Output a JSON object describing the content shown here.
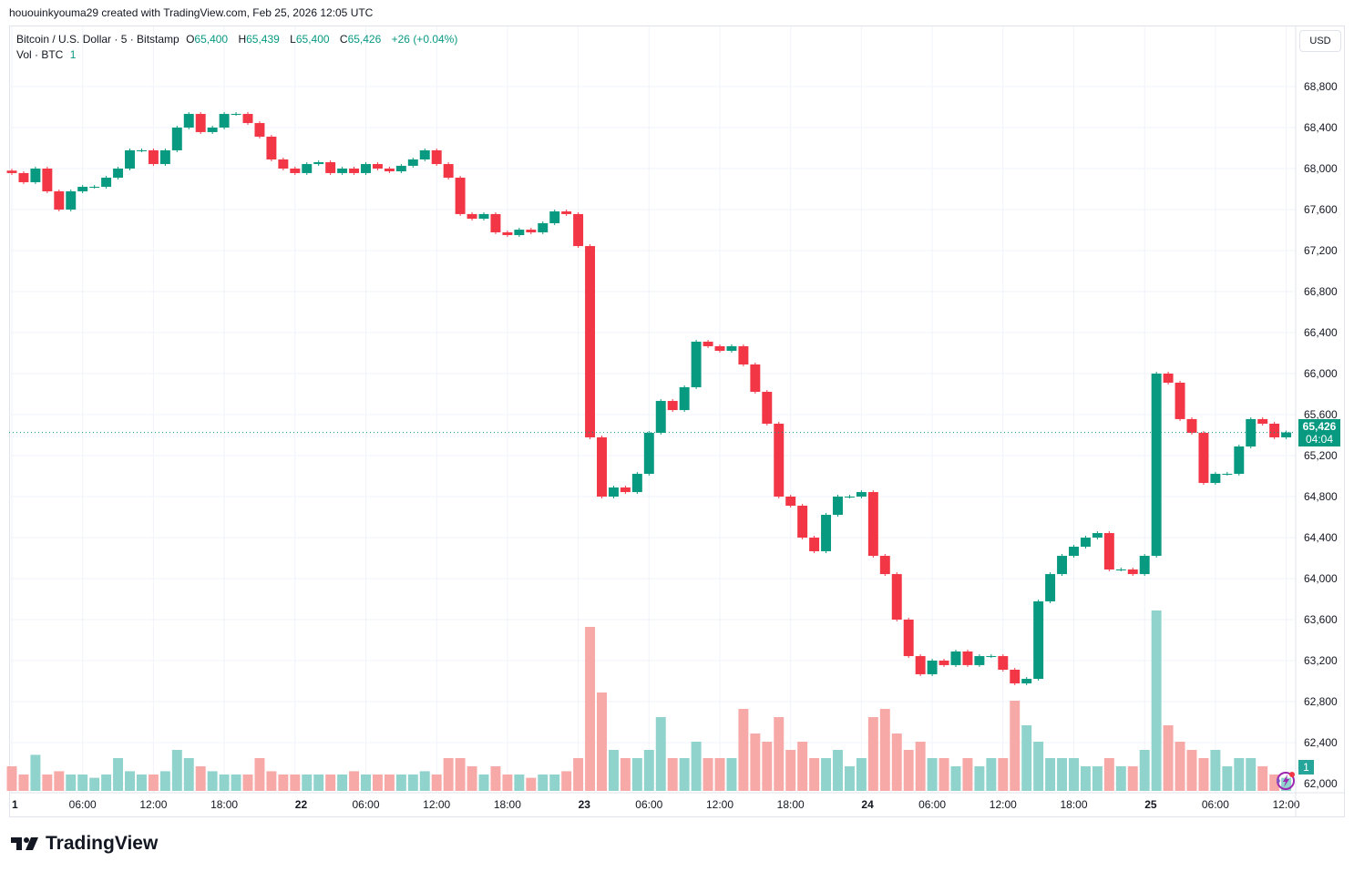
{
  "attribution": "hououinkyouma29 created with TradingView.com, Feb 25, 2026 12:05 UTC",
  "legend": {
    "symbol": "Bitcoin / U.S. Dollar · 5 · Bitstamp",
    "open_label": "O",
    "open": "65,400",
    "high_label": "H",
    "high": "65,439",
    "low_label": "L",
    "low": "65,400",
    "close_label": "C",
    "close": "65,426",
    "change": "+26 (+0.04%)",
    "volume_label": "Vol · BTC",
    "volume_value": "1"
  },
  "currency_button": "USD",
  "last_price": {
    "price": "65,426",
    "countdown": "04:04"
  },
  "volume_axis_label": "1",
  "colors": {
    "up": "#089981",
    "down": "#f23645",
    "up_volume": "#8fd3cc",
    "down_volume": "#f7a9a7",
    "grid": "#f0f3fa"
  },
  "logo_text": "TradingView",
  "icons": {
    "logo": "tradingview-logo-icon",
    "indicator": "lightning-spark-icon"
  },
  "chart_data": {
    "type": "candlestick",
    "title": "Bitcoin / U.S. Dollar · 5 · Bitstamp",
    "ylim": [
      61900,
      69300
    ],
    "grid": true,
    "y_ticks": [
      68800,
      68400,
      68000,
      67600,
      67200,
      66800,
      66400,
      66000,
      65600,
      65200,
      64800,
      64400,
      64000,
      63600,
      63200,
      62800,
      62400,
      62000
    ],
    "y_tick_labels": [
      "68,800",
      "68,400",
      "68,000",
      "67,600",
      "67,200",
      "66,800",
      "66,400",
      "66,000",
      "65,600",
      "65,200",
      "64,800",
      "64,400",
      "64,000",
      "63,600",
      "63,200",
      "62,800",
      "62,400",
      "62,000"
    ],
    "x_tick_labels": [
      {
        "label": "1",
        "hour": 0,
        "day": true
      },
      {
        "label": "06:00",
        "hour": 6
      },
      {
        "label": "12:00",
        "hour": 12
      },
      {
        "label": "18:00",
        "hour": 18
      },
      {
        "label": "22",
        "hour": 24,
        "day": true
      },
      {
        "label": "06:00",
        "hour": 30
      },
      {
        "label": "12:00",
        "hour": 36
      },
      {
        "label": "18:00",
        "hour": 42
      },
      {
        "label": "23",
        "hour": 48,
        "day": true
      },
      {
        "label": "06:00",
        "hour": 54
      },
      {
        "label": "12:00",
        "hour": 60
      },
      {
        "label": "18:00",
        "hour": 66
      },
      {
        "label": "24",
        "hour": 72,
        "day": true
      },
      {
        "label": "06:00",
        "hour": 78
      },
      {
        "label": "12:00",
        "hour": 84
      },
      {
        "label": "18:00",
        "hour": 90
      },
      {
        "label": "25",
        "hour": 96,
        "day": true
      },
      {
        "label": "06:00",
        "hour": 102
      },
      {
        "label": "12:00",
        "hour": 108
      }
    ],
    "hourly_close_approx": [
      67956,
      67867,
      68000,
      67778,
      67600,
      67778,
      67822,
      67822,
      67911,
      68000,
      68178,
      68178,
      68044,
      68178,
      68400,
      68533,
      68356,
      68400,
      68533,
      68533,
      68444,
      68311,
      68089,
      68000,
      67956,
      68044,
      68062,
      67956,
      68000,
      67956,
      68044,
      68000,
      67973,
      68027,
      68089,
      68178,
      68044,
      67911,
      67556,
      67511,
      67556,
      67378,
      67351,
      67404,
      67378,
      67467,
      67582,
      67556,
      67244,
      65378,
      64800,
      64889,
      64844,
      65022,
      65422,
      65733,
      65644,
      65867,
      66311,
      66267,
      66222,
      66267,
      66089,
      65822,
      65511,
      64800,
      64711,
      64400,
      64267,
      64622,
      64800,
      64800,
      64844,
      64222,
      64044,
      63600,
      63244,
      63067,
      63200,
      63156,
      63289,
      63156,
      63244,
      63244,
      63111,
      62978,
      63022,
      63778,
      64044,
      64222,
      64311,
      64400,
      64444,
      64089,
      64089,
      64044,
      64222,
      66000,
      65911,
      65556,
      65422,
      64933,
      65022,
      65022,
      65289,
      65556,
      65511,
      65378,
      65426
    ],
    "first_open": 67980,
    "current_price": 65426,
    "volume_relative": [
      0.15,
      0.1,
      0.22,
      0.1,
      0.12,
      0.1,
      0.1,
      0.08,
      0.1,
      0.2,
      0.12,
      0.1,
      0.1,
      0.12,
      0.25,
      0.2,
      0.15,
      0.12,
      0.1,
      0.1,
      0.1,
      0.2,
      0.12,
      0.1,
      0.1,
      0.1,
      0.1,
      0.1,
      0.1,
      0.12,
      0.1,
      0.1,
      0.1,
      0.1,
      0.1,
      0.12,
      0.1,
      0.2,
      0.2,
      0.15,
      0.1,
      0.15,
      0.1,
      0.1,
      0.08,
      0.1,
      0.1,
      0.12,
      0.2,
      1.0,
      0.6,
      0.25,
      0.2,
      0.2,
      0.25,
      0.45,
      0.2,
      0.2,
      0.3,
      0.2,
      0.2,
      0.2,
      0.5,
      0.35,
      0.3,
      0.45,
      0.25,
      0.3,
      0.2,
      0.2,
      0.25,
      0.15,
      0.2,
      0.45,
      0.5,
      0.35,
      0.25,
      0.3,
      0.2,
      0.2,
      0.15,
      0.2,
      0.15,
      0.2,
      0.2,
      0.55,
      0.4,
      0.3,
      0.2,
      0.2,
      0.2,
      0.15,
      0.15,
      0.2,
      0.15,
      0.15,
      0.25,
      1.1,
      0.4,
      0.3,
      0.25,
      0.2,
      0.25,
      0.15,
      0.2,
      0.2,
      0.15,
      0.1,
      0.08
    ]
  }
}
